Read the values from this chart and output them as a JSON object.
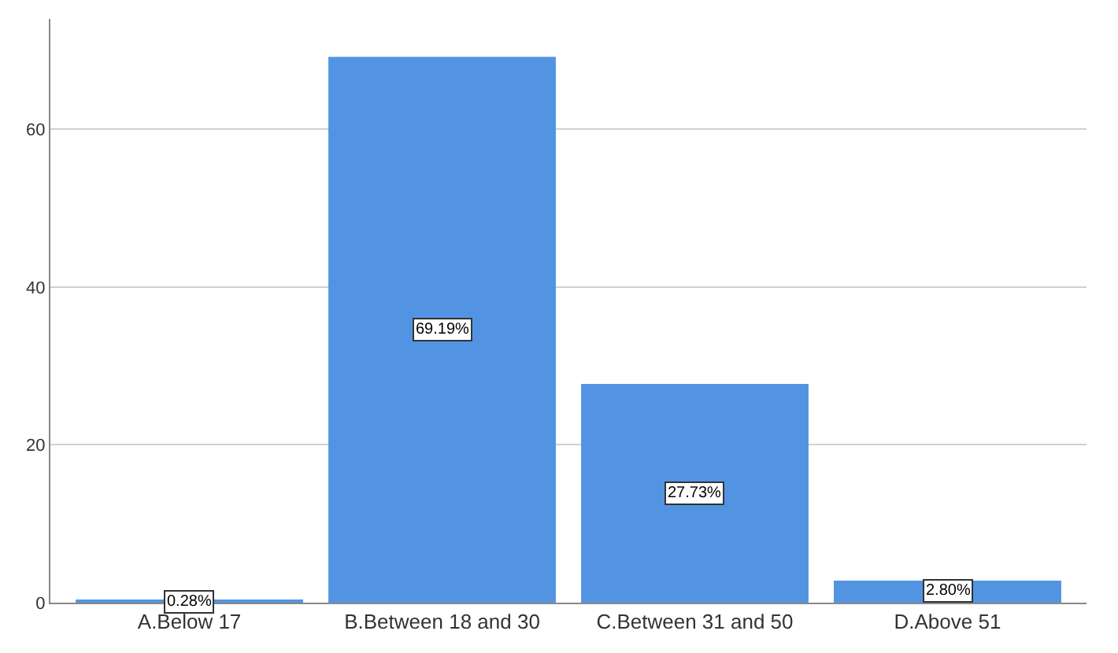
{
  "chart_data": {
    "type": "bar",
    "categories": [
      "A.Below 17",
      "B.Between 18 and 30",
      "C.Between 31 and 50",
      "D.Above 51"
    ],
    "values": [
      0.28,
      69.19,
      27.73,
      2.8
    ],
    "value_labels": [
      "0.28%",
      "69.19%",
      "27.73%",
      "2.80%"
    ],
    "color": "#5294e2",
    "ylim": [
      0,
      74
    ],
    "yticks": [
      0,
      20,
      40,
      60
    ],
    "grid": "y",
    "legend": false
  }
}
